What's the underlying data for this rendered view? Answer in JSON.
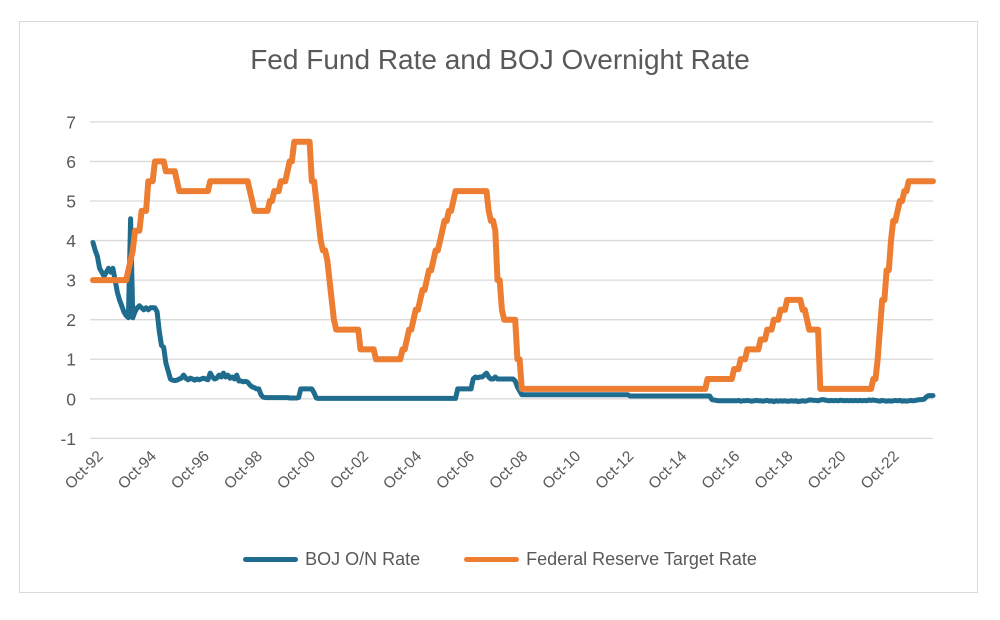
{
  "window": {
    "background": "#FFFFFF",
    "border_color": "#D9D9D9"
  },
  "chart_data": {
    "type": "line",
    "title": "Fed Fund Rate and BOJ Overnight Rate",
    "xlabel": "",
    "ylabel": "",
    "x_unit": "month",
    "x_start": "1992-10",
    "x_end": "2024-06",
    "freq": "monthly",
    "x_tick_labels": [
      "Oct-92",
      "Oct-94",
      "Oct-96",
      "Oct-98",
      "Oct-00",
      "Oct-02",
      "Oct-04",
      "Oct-06",
      "Oct-08",
      "Oct-10",
      "Oct-12",
      "Oct-14",
      "Oct-16",
      "Oct-18",
      "Oct-20",
      "Oct-22"
    ],
    "x_tick_every_months": 24,
    "y_ticks": [
      7,
      6,
      5,
      4,
      3,
      2,
      1,
      0,
      -1
    ],
    "ylim": [
      -1,
      7
    ],
    "grid": "horizontal",
    "grid_color": "#D9D9D9",
    "text_color": "#595959",
    "legend_position": "bottom",
    "series": [
      {
        "name": "BOJ O/N Rate",
        "color": "#1F6C8F",
        "stroke_width": 5,
        "values_by_year": [
          [
            3.95,
            3.75,
            3.6
          ],
          [
            3.3,
            3.2,
            3.1,
            3.2,
            3.3,
            3.2,
            3.3,
            3.0,
            2.7,
            2.5,
            2.35,
            2.2
          ],
          [
            2.1,
            2.05,
            4.55,
            2.05,
            2.2,
            2.3,
            2.35,
            2.3,
            2.25,
            2.3,
            2.25,
            2.3
          ],
          [
            2.3,
            2.3,
            2.2,
            1.7,
            1.35,
            1.3,
            0.9,
            0.7,
            0.5,
            0.47,
            0.46,
            0.47
          ],
          [
            0.5,
            0.52,
            0.6,
            0.52,
            0.48,
            0.52,
            0.5,
            0.47,
            0.5,
            0.48,
            0.5,
            0.52
          ],
          [
            0.5,
            0.48,
            0.65,
            0.55,
            0.5,
            0.52,
            0.6,
            0.55,
            0.65,
            0.55,
            0.6,
            0.52
          ],
          [
            0.55,
            0.5,
            0.6,
            0.45,
            0.45,
            0.43,
            0.44,
            0.42,
            0.35,
            0.3,
            0.28,
            0.25
          ],
          [
            0.25,
            0.1,
            0.04,
            0.03,
            0.03,
            0.03,
            0.03,
            0.03,
            0.03,
            0.03,
            0.03,
            0.03
          ],
          [
            0.03,
            0.03,
            0.02,
            0.02,
            0.02,
            0.02,
            0.03,
            0.25,
            0.25,
            0.25,
            0.25,
            0.25
          ],
          [
            0.25,
            0.15,
            0.02,
            0.01,
            0.01,
            0.01,
            0.01,
            0.01,
            0.01,
            0.01,
            0.01,
            0.01
          ],
          [
            0.01,
            0.01,
            0.01,
            0.01,
            0.01,
            0.01,
            0.01,
            0.01,
            0.01,
            0.01,
            0.01,
            0.01
          ],
          [
            0.01,
            0.01,
            0.01,
            0.01,
            0.01,
            0.01,
            0.01,
            0.01,
            0.01,
            0.01,
            0.01,
            0.01
          ],
          [
            0.01,
            0.01,
            0.01,
            0.01,
            0.01,
            0.01,
            0.01,
            0.01,
            0.01,
            0.01,
            0.01,
            0.01
          ],
          [
            0.01,
            0.01,
            0.01,
            0.01,
            0.01,
            0.01,
            0.01,
            0.01,
            0.01,
            0.01,
            0.01,
            0.01
          ],
          [
            0.01,
            0.01,
            0.01,
            0.01,
            0.01,
            0.01,
            0.25,
            0.25,
            0.25,
            0.25,
            0.25,
            0.25
          ],
          [
            0.25,
            0.5,
            0.55,
            0.53,
            0.55,
            0.55,
            0.6,
            0.65,
            0.55,
            0.5,
            0.5,
            0.55
          ],
          [
            0.5,
            0.5,
            0.5,
            0.5,
            0.5,
            0.5,
            0.5,
            0.5,
            0.45,
            0.3,
            0.2,
            0.1
          ],
          [
            0.1,
            0.1,
            0.1,
            0.1,
            0.1,
            0.1,
            0.1,
            0.1,
            0.1,
            0.1,
            0.1,
            0.1
          ],
          [
            0.1,
            0.1,
            0.1,
            0.1,
            0.1,
            0.1,
            0.1,
            0.1,
            0.1,
            0.1,
            0.1,
            0.1
          ],
          [
            0.1,
            0.1,
            0.1,
            0.1,
            0.1,
            0.1,
            0.1,
            0.1,
            0.1,
            0.1,
            0.1,
            0.1
          ],
          [
            0.1,
            0.1,
            0.1,
            0.1,
            0.1,
            0.1,
            0.1,
            0.1,
            0.1,
            0.1,
            0.1,
            0.1
          ],
          [
            0.07,
            0.07,
            0.07,
            0.07,
            0.07,
            0.07,
            0.07,
            0.07,
            0.07,
            0.07,
            0.07,
            0.07
          ],
          [
            0.07,
            0.07,
            0.07,
            0.07,
            0.07,
            0.07,
            0.07,
            0.07,
            0.07,
            0.07,
            0.07,
            0.07
          ],
          [
            0.07,
            0.07,
            0.07,
            0.07,
            0.07,
            0.07,
            0.07,
            0.07,
            0.07,
            0.07,
            0.07,
            0.07
          ],
          [
            0.07,
            -0.02,
            -0.03,
            -0.04,
            -0.05,
            -0.05,
            -0.05,
            -0.05,
            -0.05,
            -0.05,
            -0.05,
            -0.05
          ],
          [
            -0.05,
            -0.04,
            -0.06,
            -0.05,
            -0.05,
            -0.04,
            -0.05,
            -0.06,
            -0.05,
            -0.04,
            -0.05,
            -0.05
          ],
          [
            -0.06,
            -0.05,
            -0.04,
            -0.06,
            -0.05,
            -0.07,
            -0.05,
            -0.06,
            -0.05,
            -0.06,
            -0.05,
            -0.06
          ],
          [
            -0.06,
            -0.05,
            -0.06,
            -0.05,
            -0.07,
            -0.06,
            -0.05,
            -0.06,
            -0.05,
            -0.03,
            -0.03,
            -0.04
          ],
          [
            -0.04,
            -0.05,
            -0.03,
            -0.02,
            -0.03,
            -0.04,
            -0.05,
            -0.04,
            -0.05,
            -0.04,
            -0.05,
            -0.04
          ],
          [
            -0.04,
            -0.05,
            -0.04,
            -0.05,
            -0.04,
            -0.05,
            -0.04,
            -0.05,
            -0.04,
            -0.05,
            -0.04,
            -0.05
          ],
          [
            -0.03,
            -0.04,
            -0.03,
            -0.04,
            -0.05,
            -0.06,
            -0.04,
            -0.05,
            -0.06,
            -0.05,
            -0.06,
            -0.05
          ],
          [
            -0.04,
            -0.05,
            -0.04,
            -0.06,
            -0.05,
            -0.06,
            -0.05,
            -0.04,
            -0.05,
            -0.04,
            -0.03,
            -0.02
          ],
          [
            -0.02,
            -0.01,
            0.05,
            0.08,
            0.08,
            0.08
          ]
        ]
      },
      {
        "name": "Federal Reserve Target Rate",
        "color": "#ED7D31",
        "stroke_width": 6,
        "values_by_year": [
          [
            3,
            3,
            3
          ],
          [
            3,
            3,
            3,
            3,
            3,
            3,
            3,
            3,
            3,
            3,
            3,
            3
          ],
          [
            3,
            3.25,
            3.5,
            3.75,
            4.25,
            4.25,
            4.25,
            4.75,
            4.75,
            4.75,
            5.5,
            5.5
          ],
          [
            5.5,
            6,
            6,
            6,
            6,
            6,
            5.75,
            5.75,
            5.75,
            5.75,
            5.75,
            5.5
          ],
          [
            5.25,
            5.25,
            5.25,
            5.25,
            5.25,
            5.25,
            5.25,
            5.25,
            5.25,
            5.25,
            5.25,
            5.25
          ],
          [
            5.25,
            5.25,
            5.5,
            5.5,
            5.5,
            5.5,
            5.5,
            5.5,
            5.5,
            5.5,
            5.5,
            5.5
          ],
          [
            5.5,
            5.5,
            5.5,
            5.5,
            5.5,
            5.5,
            5.5,
            5.5,
            5.25,
            5,
            4.75,
            4.75
          ],
          [
            4.75,
            4.75,
            4.75,
            4.75,
            4.75,
            5,
            5,
            5.25,
            5.25,
            5.25,
            5.5,
            5.5
          ],
          [
            5.5,
            5.75,
            6,
            6,
            6.5,
            6.5,
            6.5,
            6.5,
            6.5,
            6.5,
            6.5,
            6.5
          ],
          [
            5.5,
            5.5,
            5,
            4.5,
            4,
            3.75,
            3.75,
            3.5,
            3,
            2.5,
            2,
            1.75
          ],
          [
            1.75,
            1.75,
            1.75,
            1.75,
            1.75,
            1.75,
            1.75,
            1.75,
            1.75,
            1.75,
            1.25,
            1.25
          ],
          [
            1.25,
            1.25,
            1.25,
            1.25,
            1.25,
            1,
            1,
            1,
            1,
            1,
            1,
            1
          ],
          [
            1,
            1,
            1,
            1,
            1,
            1.25,
            1.25,
            1.5,
            1.75,
            1.75,
            2,
            2.25
          ],
          [
            2.25,
            2.5,
            2.75,
            2.75,
            3,
            3.25,
            3.25,
            3.5,
            3.75,
            3.75,
            4,
            4.25
          ],
          [
            4.5,
            4.5,
            4.75,
            4.75,
            5,
            5.25,
            5.25,
            5.25,
            5.25,
            5.25,
            5.25,
            5.25
          ],
          [
            5.25,
            5.25,
            5.25,
            5.25,
            5.25,
            5.25,
            5.25,
            5.25,
            4.75,
            4.5,
            4.5,
            4.25
          ],
          [
            3,
            3,
            2.25,
            2,
            2,
            2,
            2,
            2,
            2,
            1,
            1,
            0.25
          ],
          [
            0.25,
            0.25,
            0.25,
            0.25,
            0.25,
            0.25,
            0.25,
            0.25,
            0.25,
            0.25,
            0.25,
            0.25
          ],
          [
            0.25,
            0.25,
            0.25,
            0.25,
            0.25,
            0.25,
            0.25,
            0.25,
            0.25,
            0.25,
            0.25,
            0.25
          ],
          [
            0.25,
            0.25,
            0.25,
            0.25,
            0.25,
            0.25,
            0.25,
            0.25,
            0.25,
            0.25,
            0.25,
            0.25
          ],
          [
            0.25,
            0.25,
            0.25,
            0.25,
            0.25,
            0.25,
            0.25,
            0.25,
            0.25,
            0.25,
            0.25,
            0.25
          ],
          [
            0.25,
            0.25,
            0.25,
            0.25,
            0.25,
            0.25,
            0.25,
            0.25,
            0.25,
            0.25,
            0.25,
            0.25
          ],
          [
            0.25,
            0.25,
            0.25,
            0.25,
            0.25,
            0.25,
            0.25,
            0.25,
            0.25,
            0.25,
            0.25,
            0.25
          ],
          [
            0.25,
            0.25,
            0.25,
            0.25,
            0.25,
            0.25,
            0.25,
            0.25,
            0.25,
            0.25,
            0.25,
            0.5
          ],
          [
            0.5,
            0.5,
            0.5,
            0.5,
            0.5,
            0.5,
            0.5,
            0.5,
            0.5,
            0.5,
            0.5,
            0.75
          ],
          [
            0.75,
            0.75,
            1,
            1,
            1,
            1.25,
            1.25,
            1.25,
            1.25,
            1.25,
            1.25,
            1.5
          ],
          [
            1.5,
            1.5,
            1.75,
            1.75,
            1.75,
            2,
            2,
            2,
            2.25,
            2.25,
            2.25,
            2.5
          ],
          [
            2.5,
            2.5,
            2.5,
            2.5,
            2.5,
            2.5,
            2.25,
            2.25,
            2,
            1.75,
            1.75,
            1.75
          ],
          [
            1.75,
            1.75,
            0.25,
            0.25,
            0.25,
            0.25,
            0.25,
            0.25,
            0.25,
            0.25,
            0.25,
            0.25
          ],
          [
            0.25,
            0.25,
            0.25,
            0.25,
            0.25,
            0.25,
            0.25,
            0.25,
            0.25,
            0.25,
            0.25,
            0.25
          ],
          [
            0.25,
            0.25,
            0.5,
            0.5,
            1,
            1.75,
            2.5,
            2.5,
            3.25,
            3.25,
            4,
            4.5
          ],
          [
            4.5,
            4.75,
            5,
            5,
            5.25,
            5.25,
            5.5,
            5.5,
            5.5,
            5.5,
            5.5,
            5.5
          ],
          [
            5.5,
            5.5,
            5.5,
            5.5,
            5.5,
            5.5
          ]
        ]
      }
    ]
  }
}
